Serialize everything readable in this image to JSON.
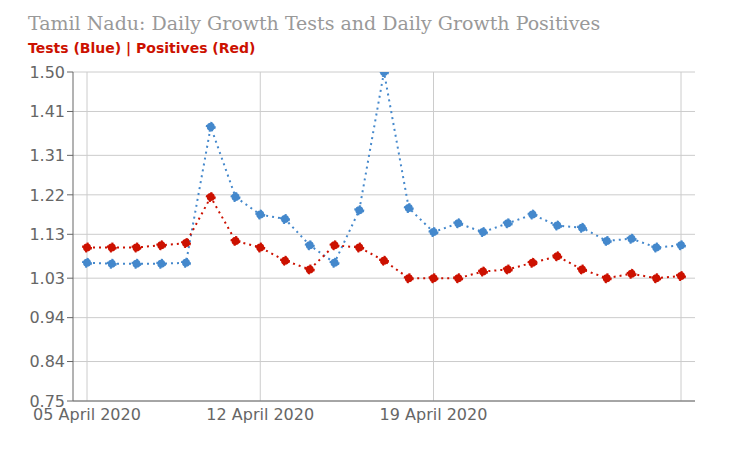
{
  "chart_data": {
    "type": "line",
    "title": "Tamil Nadu: Daily Growth Tests and Daily Growth Positives",
    "subtitle": "Tests (Blue) | Positives (Red)",
    "categories": [
      "05 April 2020",
      null,
      null,
      null,
      null,
      null,
      null,
      "12 April 2020",
      null,
      null,
      null,
      null,
      null,
      null,
      "19 April 2020",
      null,
      null,
      null,
      null,
      null,
      null,
      null,
      null,
      null,
      null
    ],
    "series": [
      {
        "color": "#4488cc",
        "values": [
          1.065,
          1.063,
          1.063,
          1.063,
          1.065,
          1.375,
          1.215,
          1.175,
          1.165,
          1.105,
          1.065,
          1.185,
          1.5,
          1.19,
          1.135,
          1.155,
          1.135,
          1.155,
          1.175,
          1.15,
          1.145,
          1.115,
          1.12,
          1.1,
          1.105
        ]
      },
      {
        "color": "#cc1100",
        "values": [
          1.1,
          1.1,
          1.1,
          1.105,
          1.11,
          1.215,
          1.115,
          1.1,
          1.07,
          1.05,
          1.105,
          1.1,
          1.07,
          1.03,
          1.03,
          1.03,
          1.045,
          1.05,
          1.065,
          1.08,
          1.05,
          1.03,
          1.04,
          1.03,
          1.035
        ]
      }
    ],
    "ylim": [
      0.75,
      1.5
    ],
    "yticks": [
      0.75,
      0.84,
      0.94,
      1.03,
      1.13,
      1.22,
      1.31,
      1.41,
      {
        "value": 1.5,
        "label": "1.50"
      }
    ],
    "grid": true,
    "marker": "circle",
    "line_style": "dotted"
  }
}
